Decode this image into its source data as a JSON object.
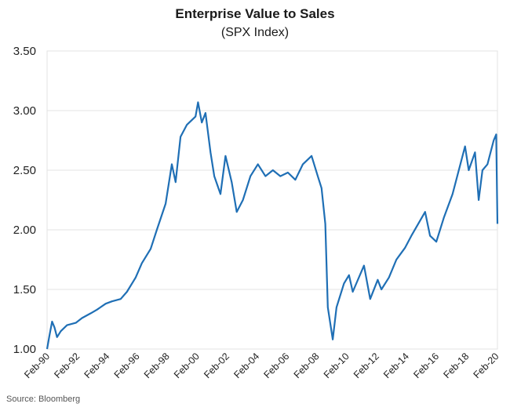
{
  "chart_data": {
    "type": "line",
    "title": "Enterprise Value to Sales",
    "subtitle": "(SPX Index)",
    "source": "Source: Bloomberg",
    "xlabel": "",
    "ylabel": "",
    "grid": true,
    "legend": "none",
    "line_color": "#1f6fb5",
    "ylim": [
      1.0,
      3.5
    ],
    "yticks": [
      "1.00",
      "1.50",
      "2.00",
      "2.50",
      "3.00",
      "3.50"
    ],
    "xlim": [
      "1990-02",
      "2020-03"
    ],
    "xticks": [
      "Feb-90",
      "Feb-92",
      "Feb-94",
      "Feb-96",
      "Feb-98",
      "Feb-00",
      "Feb-02",
      "Feb-04",
      "Feb-06",
      "Feb-08",
      "Feb-10",
      "Feb-12",
      "Feb-14",
      "Feb-16",
      "Feb-18",
      "Feb-20"
    ],
    "series": [
      {
        "points": [
          [
            "1990-02",
            1.0
          ],
          [
            "1990-04",
            1.12
          ],
          [
            "1990-06",
            1.23
          ],
          [
            "1990-08",
            1.18
          ],
          [
            "1990-10",
            1.1
          ],
          [
            "1991-01",
            1.15
          ],
          [
            "1991-06",
            1.2
          ],
          [
            "1992-01",
            1.22
          ],
          [
            "1992-06",
            1.26
          ],
          [
            "1993-01",
            1.3
          ],
          [
            "1993-06",
            1.33
          ],
          [
            "1994-01",
            1.38
          ],
          [
            "1994-06",
            1.4
          ],
          [
            "1995-01",
            1.42
          ],
          [
            "1995-06",
            1.48
          ],
          [
            "1996-01",
            1.6
          ],
          [
            "1996-06",
            1.72
          ],
          [
            "1997-01",
            1.84
          ],
          [
            "1997-06",
            2.0
          ],
          [
            "1998-01",
            2.22
          ],
          [
            "1998-06",
            2.55
          ],
          [
            "1998-09",
            2.4
          ],
          [
            "1999-01",
            2.78
          ],
          [
            "1999-06",
            2.88
          ],
          [
            "2000-01",
            2.95
          ],
          [
            "2000-03",
            3.07
          ],
          [
            "2000-06",
            2.9
          ],
          [
            "2000-09",
            2.98
          ],
          [
            "2001-01",
            2.65
          ],
          [
            "2001-04",
            2.45
          ],
          [
            "2001-09",
            2.3
          ],
          [
            "2002-01",
            2.62
          ],
          [
            "2002-06",
            2.4
          ],
          [
            "2002-10",
            2.15
          ],
          [
            "2003-03",
            2.25
          ],
          [
            "2003-09",
            2.45
          ],
          [
            "2004-03",
            2.55
          ],
          [
            "2004-09",
            2.45
          ],
          [
            "2005-03",
            2.5
          ],
          [
            "2005-09",
            2.45
          ],
          [
            "2006-03",
            2.48
          ],
          [
            "2006-09",
            2.42
          ],
          [
            "2007-03",
            2.55
          ],
          [
            "2007-10",
            2.62
          ],
          [
            "2008-03",
            2.45
          ],
          [
            "2008-06",
            2.35
          ],
          [
            "2008-09",
            2.05
          ],
          [
            "2008-11",
            1.35
          ],
          [
            "2009-03",
            1.08
          ],
          [
            "2009-06",
            1.35
          ],
          [
            "2009-12",
            1.55
          ],
          [
            "2010-04",
            1.62
          ],
          [
            "2010-07",
            1.48
          ],
          [
            "2011-04",
            1.7
          ],
          [
            "2011-09",
            1.42
          ],
          [
            "2012-03",
            1.58
          ],
          [
            "2012-06",
            1.5
          ],
          [
            "2012-12",
            1.6
          ],
          [
            "2013-06",
            1.75
          ],
          [
            "2014-01",
            1.85
          ],
          [
            "2014-06",
            1.95
          ],
          [
            "2015-05",
            2.15
          ],
          [
            "2015-09",
            1.95
          ],
          [
            "2016-02",
            1.9
          ],
          [
            "2016-08",
            2.1
          ],
          [
            "2017-03",
            2.3
          ],
          [
            "2018-01",
            2.7
          ],
          [
            "2018-04",
            2.5
          ],
          [
            "2018-09",
            2.65
          ],
          [
            "2018-12",
            2.25
          ],
          [
            "2019-03",
            2.5
          ],
          [
            "2019-07",
            2.55
          ],
          [
            "2019-12",
            2.75
          ],
          [
            "2020-02",
            2.8
          ],
          [
            "2020-03",
            2.05
          ]
        ]
      }
    ]
  }
}
